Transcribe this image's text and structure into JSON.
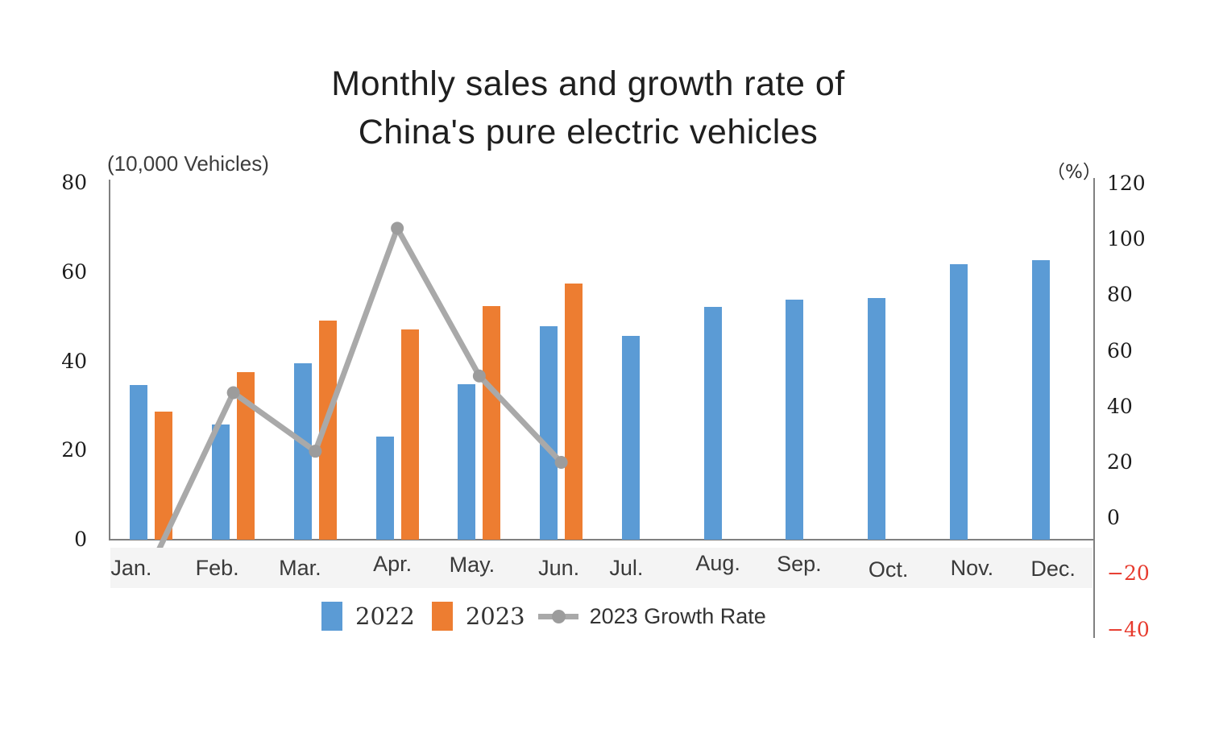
{
  "title": {
    "line1": "Monthly sales and growth rate of",
    "line2": "China's pure electric vehicles"
  },
  "axes": {
    "left": {
      "unit_label": "(10,000 Vehicles)",
      "ticks": [
        "80",
        "60",
        "40",
        "20",
        "0"
      ]
    },
    "right": {
      "unit_label": "（%）",
      "ticks": [
        {
          "label": "120",
          "negative": false
        },
        {
          "label": "100",
          "negative": false
        },
        {
          "label": "80",
          "negative": false
        },
        {
          "label": "60",
          "negative": false
        },
        {
          "label": "40",
          "negative": false
        },
        {
          "label": "20",
          "negative": false
        },
        {
          "label": "0",
          "negative": false
        },
        {
          "label": "−20",
          "negative": true
        },
        {
          "label": "−40",
          "negative": true
        }
      ]
    }
  },
  "legend": {
    "items": [
      {
        "label": "2022",
        "type": "bar",
        "color": "#5B9BD5"
      },
      {
        "label": "2023",
        "type": "bar",
        "color": "#ED7D31"
      },
      {
        "label": "2023 Growth Rate",
        "type": "line",
        "color": "#A9A9A9"
      }
    ]
  },
  "chart_data": {
    "type": "bar+line",
    "title": "Monthly sales and growth rate of China's pure electric vehicles",
    "categories": [
      "Jan.",
      "Feb.",
      "Mar.",
      "Apr.",
      "May.",
      "Jun.",
      "Jul.",
      "Aug.",
      "Sep.",
      "Oct.",
      "Nov.",
      "Dec."
    ],
    "left_axis": {
      "label": "(10,000 Vehicles)",
      "min": 0,
      "max": 80,
      "tick_step": 20
    },
    "right_axis": {
      "label": "(%)",
      "min": -40,
      "max": 120,
      "tick_step": 20,
      "negative_tick_color": "#e73b2e"
    },
    "grid": false,
    "legend_position": "bottom",
    "series": [
      {
        "name": "2022",
        "type": "bar",
        "axis": "left",
        "color": "#5B9BD5",
        "values": [
          34.7,
          25.9,
          39.6,
          23.1,
          34.8,
          47.8,
          45.7,
          52.1,
          53.8,
          54.2,
          61.8,
          62.7
        ]
      },
      {
        "name": "2023",
        "type": "bar",
        "axis": "left",
        "color": "#ED7D31",
        "values": [
          28.8,
          37.6,
          49.1,
          47.2,
          52.4,
          57.4,
          null,
          null,
          null,
          null,
          null,
          null
        ]
      },
      {
        "name": "2023 Growth Rate",
        "type": "line",
        "axis": "right",
        "color": "#A9A9A9",
        "marker_color": "#9C9C9C",
        "values": [
          -17,
          45,
          24,
          104,
          51,
          20,
          null,
          null,
          null,
          null,
          null,
          null
        ]
      }
    ]
  }
}
